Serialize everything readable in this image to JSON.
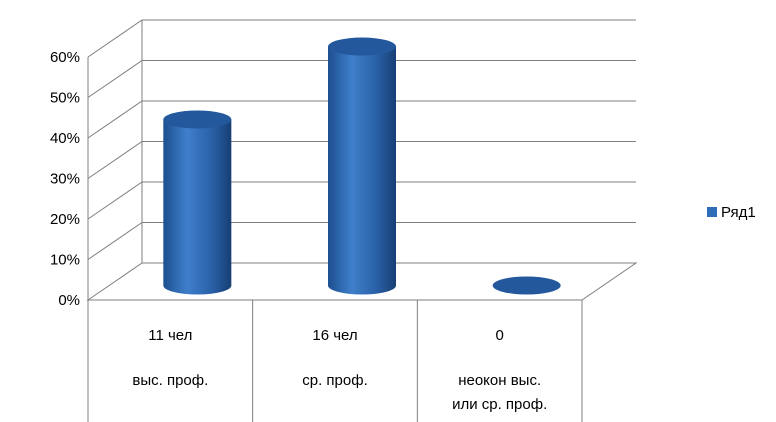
{
  "chart_data": {
    "type": "bar",
    "style": "3d-cylinder",
    "categories": [
      [
        "11 чел",
        "выс. проф."
      ],
      [
        "16 чел",
        "ср. проф."
      ],
      [
        "0",
        "неокон выс.",
        "или ср. проф."
      ]
    ],
    "series": [
      {
        "name": "Ряд1",
        "values": [
          0.41,
          0.59,
          0
        ],
        "color": "#2f6db6"
      }
    ],
    "yticks": [
      "0%",
      "10%",
      "20%",
      "30%",
      "40%",
      "50%",
      "60%"
    ],
    "ylim": [
      0,
      0.6
    ],
    "grid": true,
    "legend": "right",
    "title": "",
    "xlabel": "",
    "ylabel": ""
  }
}
